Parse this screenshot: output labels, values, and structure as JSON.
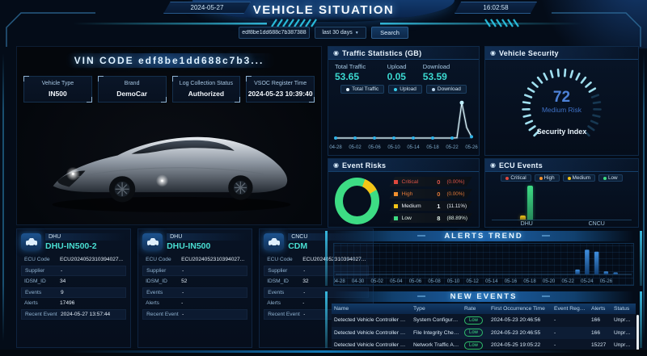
{
  "icons": {
    "caret": "▼",
    "target": "◉"
  },
  "colors": {
    "accent": "#38cdea",
    "teal": "#3bd9d0",
    "score_blue": "#4d82d8",
    "critical": "#e0483e",
    "high": "#f2902e",
    "medium": "#f3c517",
    "low": "#3ddc84",
    "alert_bar": "#3f8fe0"
  },
  "header": {
    "date": "2024-05-27",
    "title": "VEHICLE SITUATION",
    "time": "16:02:58"
  },
  "search": {
    "vin_value": "edf8be1dd688c7b387388",
    "range_value": "last 30 days",
    "button_label": "Search"
  },
  "vin_panel": {
    "title": "VIN CODE edf8be1dd688c7b3...",
    "fields": [
      {
        "label": "Vehicle Type",
        "value": "IN500"
      },
      {
        "label": "Brand",
        "value": "DemoCar"
      },
      {
        "label": "Log Collection Status",
        "value": "Authorized"
      },
      {
        "label": "VSOC Register Time",
        "value": "2024-05-23 10:39:40"
      }
    ]
  },
  "traffic": {
    "title": "Traffic Statistics (GB)",
    "stats": [
      {
        "label": "Total Traffic",
        "value": "53.65"
      },
      {
        "label": "Upload",
        "value": "0.05"
      },
      {
        "label": "Download",
        "value": "53.59"
      }
    ],
    "legend": [
      {
        "label": "Total Traffic",
        "color": "#e8f4ff"
      },
      {
        "label": "Upload",
        "color": "#38cdea"
      },
      {
        "label": "Download",
        "color": "#bcd6ee"
      }
    ],
    "chart_data": {
      "type": "line",
      "x_ticks": [
        "04-28",
        "05-02",
        "05-06",
        "05-10",
        "05-14",
        "05-18",
        "05-22",
        "05-26"
      ],
      "points": [
        [
          "04-28",
          0
        ],
        [
          "05-02",
          0
        ],
        [
          "05-06",
          0
        ],
        [
          "05-10",
          0
        ],
        [
          "05-14",
          0
        ],
        [
          "05-18",
          0
        ],
        [
          "05-22",
          0
        ],
        [
          "05-23",
          0.4
        ],
        [
          "05-24",
          53.6
        ],
        [
          "05-25",
          16
        ],
        [
          "05-26",
          2
        ]
      ],
      "ylim": [
        0,
        60
      ],
      "line_color": "#d8f3fb",
      "dot_color": "#2fb3e8"
    }
  },
  "security": {
    "title": "Vehicle Security",
    "score": "72",
    "level": "Medium Risk",
    "caption": "Security Index",
    "chart_data": {
      "type": "gauge",
      "value": 72,
      "min": 0,
      "max": 100,
      "ticks": 26,
      "lit_color": "#a9ecfc",
      "dim_color": "#173852"
    }
  },
  "event_risks": {
    "title": "Event Risks",
    "items": [
      {
        "label": "Critical",
        "count": "0",
        "pct": "(0.00%)",
        "color": "#e0483e",
        "text_color": "#e05548"
      },
      {
        "label": "High",
        "count": "0",
        "pct": "(0.00%)",
        "color": "#f2902e",
        "text_color": "#e07838"
      },
      {
        "label": "Medium",
        "count": "1",
        "pct": "(11.11%)",
        "color": "#f3c517",
        "text_color": "#e9eef4"
      },
      {
        "label": "Low",
        "count": "8",
        "pct": "(88.89%)",
        "color": "#3ddc84",
        "text_color": "#dfeee6"
      }
    ],
    "chart_data": {
      "type": "pie",
      "labels": [
        "Critical",
        "High",
        "Medium",
        "Low"
      ],
      "values": [
        0,
        0,
        1,
        8
      ],
      "colors": [
        "#e0483e",
        "#f2902e",
        "#f3c517",
        "#3ddc84"
      ],
      "start_deg": 20
    }
  },
  "ecu_events": {
    "title": "ECU Events",
    "legend": [
      {
        "label": "Critical",
        "color": "#e0483e"
      },
      {
        "label": "High",
        "color": "#f2902e"
      },
      {
        "label": "Medium",
        "color": "#f3c517"
      },
      {
        "label": "Low",
        "color": "#3ddc84"
      }
    ],
    "chart_data": {
      "type": "bar",
      "categories": [
        "DHU",
        "CNCU"
      ],
      "ymax": 8,
      "series": [
        {
          "name": "Critical",
          "color": "#e0483e",
          "values": [
            0,
            0
          ]
        },
        {
          "name": "High",
          "color": "#f2902e",
          "values": [
            0,
            0
          ]
        },
        {
          "name": "Medium",
          "color": "#f3c517",
          "values": [
            1,
            0
          ]
        },
        {
          "name": "Low",
          "color": "#3ddc84",
          "values": [
            8,
            0
          ]
        }
      ]
    }
  },
  "ecu_card_labels": {
    "code": "ECU Code",
    "supplier": "Supplier",
    "idsm": "IDSM_ID",
    "events": "Events",
    "alerts": "Alerts",
    "recent": "Recent Event"
  },
  "ecu_cards": [
    {
      "badge": "DHU",
      "name": "DHU-IN500-2",
      "ecu_code": "ECU2024052310394027...",
      "supplier": "-",
      "idsm_id": "34",
      "events": "9",
      "alerts": "17496",
      "recent_event": "2024-05-27 13:57:44"
    },
    {
      "badge": "DHU",
      "name": "DHU-IN500",
      "ecu_code": "ECU2024052310394027...",
      "supplier": "-",
      "idsm_id": "52",
      "events": "-",
      "alerts": "-",
      "recent_event": "-"
    },
    {
      "badge": "CNCU",
      "name": "CDM",
      "ecu_code": "ECU2024052310394027...",
      "supplier": "-",
      "idsm_id": "32",
      "events": "-",
      "alerts": "-",
      "recent_event": "-"
    }
  ],
  "alerts_trend": {
    "title": "ALERTS TREND",
    "chart_data": {
      "type": "bar",
      "x_ticks": [
        "04-28",
        "04-30",
        "05-02",
        "05-04",
        "05-06",
        "05-08",
        "05-10",
        "05-12",
        "05-14",
        "05-16",
        "05-18",
        "05-20",
        "05-22",
        "05-24",
        "05-26"
      ],
      "bars": [
        [
          "05-23",
          1800
        ],
        [
          "05-24",
          9000
        ],
        [
          "05-25",
          8300
        ],
        [
          "05-26",
          1100
        ],
        [
          "05-27",
          750
        ]
      ],
      "ymax": 10000,
      "bar_color": "#3f8fe0"
    }
  },
  "new_events": {
    "title": "NEW EVENTS",
    "columns": [
      "Name",
      "Type",
      "Rate",
      "First Occurrence Time",
      "Event Regions",
      "Alerts",
      "Status"
    ],
    "rows": [
      {
        "name": "Detected Vehicle Controller Cri...",
        "type": "System Configurati...",
        "rate": "Low",
        "time": "2024-05-23 20:46:56",
        "regions": "-",
        "alerts": "166",
        "status": "Unproc..."
      },
      {
        "name": "Detected Vehicle Controller Sys...",
        "type": "File Integrity Check...",
        "rate": "Low",
        "time": "2024-05-23 20:46:55",
        "regions": "-",
        "alerts": "166",
        "status": "Unproc..."
      },
      {
        "name": "Detected Vehicle Controller Ne...",
        "type": "Network Traffic An...",
        "rate": "Low",
        "time": "2024-05-25 19:05:22",
        "regions": "-",
        "alerts": "15227",
        "status": "Unproc..."
      }
    ]
  }
}
